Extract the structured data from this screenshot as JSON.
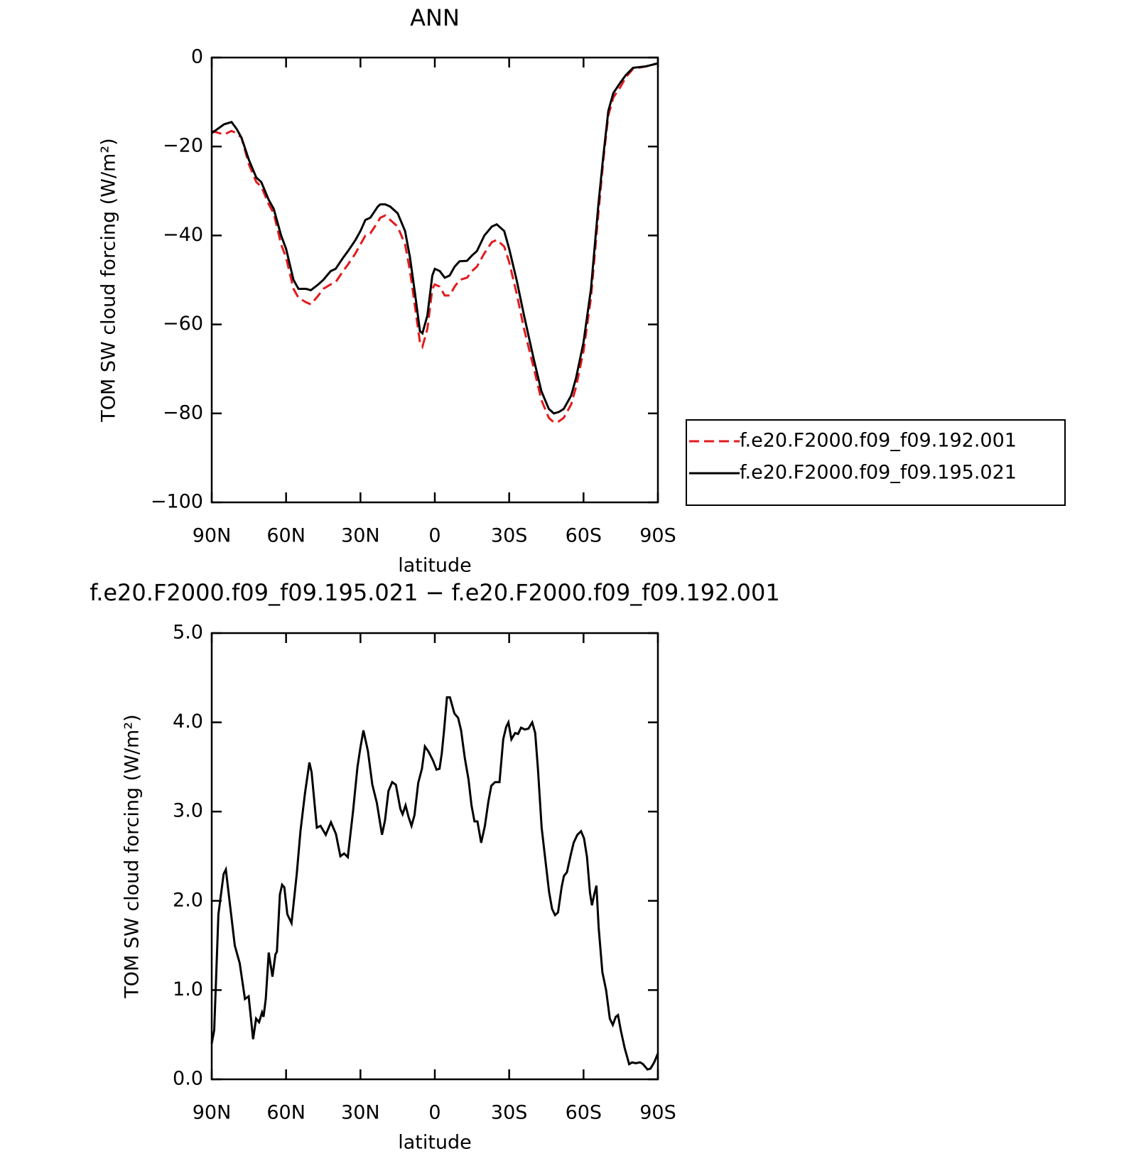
{
  "chart_data": [
    {
      "type": "line",
      "title": "ANN",
      "xlabel": "latitude",
      "ylabel": "TOM SW cloud forcing (W/m²)",
      "x": [
        90,
        85,
        82,
        80,
        78,
        75,
        72,
        70,
        67,
        65,
        62,
        60,
        57,
        55,
        52,
        50,
        47,
        45,
        42,
        40,
        37,
        35,
        32,
        30,
        28,
        26,
        23,
        22,
        20,
        18,
        15,
        12,
        10,
        8,
        6,
        5,
        3,
        1,
        0,
        -2,
        -4,
        -6,
        -8,
        -10,
        -13,
        -15,
        -17,
        -20,
        -23,
        -25,
        -28,
        -30,
        -33,
        -36,
        -40,
        -43,
        -46,
        -48,
        -50,
        -52,
        -55,
        -57,
        -60,
        -63,
        -66,
        -68,
        -70,
        -72,
        -75,
        -77,
        -80,
        -85,
        -90
      ],
      "series": [
        {
          "name": "f.e20.F2000.f09_f09.192.001",
          "color": "#e31a1c",
          "dash": "dashed",
          "values": [
            -16.5,
            -17.3,
            -16.5,
            -17,
            -18,
            -24,
            -28,
            -29,
            -33,
            -35,
            -42,
            -45,
            -52,
            -54,
            -55,
            -55.5,
            -53.5,
            -52,
            -51,
            -50.5,
            -48,
            -46.5,
            -44,
            -42,
            -40,
            -39.5,
            -37,
            -36,
            -35.5,
            -36.5,
            -38,
            -42,
            -48,
            -56,
            -64,
            -65,
            -61,
            -52,
            -51,
            -51.5,
            -53.5,
            -53.5,
            -51.5,
            -50,
            -49.5,
            -48,
            -47,
            -44,
            -41.5,
            -41,
            -42.5,
            -46,
            -53,
            -61,
            -70,
            -77,
            -81,
            -82,
            -81.8,
            -81,
            -78,
            -74,
            -66,
            -54,
            -35,
            -23,
            -13,
            -9,
            -6.5,
            -4.5,
            -2.5,
            -2,
            -1.3
          ]
        },
        {
          "name": "f.e20.F2000.f09_f09.195.021",
          "color": "#000000",
          "dash": "solid",
          "values": [
            -17,
            -15,
            -14.5,
            -16,
            -18,
            -23,
            -27,
            -28,
            -32,
            -34,
            -40,
            -43,
            -50,
            -52,
            -52,
            -52.3,
            -51,
            -50,
            -48,
            -47.5,
            -45,
            -43.5,
            -41,
            -39,
            -36.5,
            -36,
            -33.5,
            -33,
            -33,
            -33.5,
            -35,
            -39,
            -45,
            -53,
            -61.5,
            -62,
            -58,
            -49,
            -47.5,
            -48,
            -49.5,
            -49,
            -47,
            -45.8,
            -45.7,
            -44.5,
            -43.5,
            -40,
            -38,
            -37.5,
            -39,
            -43,
            -50,
            -58,
            -68,
            -75,
            -79,
            -80,
            -79.7,
            -79,
            -76,
            -72,
            -64,
            -52,
            -33,
            -22,
            -12,
            -8,
            -5.5,
            -4,
            -2.3,
            -2,
            -1.3
          ]
        }
      ],
      "xlim": [
        90,
        -90
      ],
      "xticks": [
        {
          "value": 90,
          "label": "90N"
        },
        {
          "value": 60,
          "label": "60N"
        },
        {
          "value": 30,
          "label": "30N"
        },
        0,
        {
          "value": -30,
          "label": "30S"
        },
        {
          "value": -60,
          "label": "60S"
        },
        {
          "value": -90,
          "label": "90S"
        }
      ],
      "ylim": [
        -100,
        0
      ],
      "yticks": [
        {
          "value": 0,
          "label": "0"
        },
        {
          "value": -20,
          "label": "−20"
        },
        {
          "value": -40,
          "label": "−40"
        },
        {
          "value": -60,
          "label": "−60"
        },
        {
          "value": -80,
          "label": "−80"
        },
        {
          "value": -100,
          "label": "−100"
        }
      ],
      "legend": "right"
    },
    {
      "type": "line",
      "title": "f.e20.F2000.f09_f09.195.021 − f.e20.F2000.f09_f09.192.001",
      "xlabel": "latitude",
      "ylabel": "TOM SW cloud forcing (W/m²)",
      "x": [
        90,
        89,
        87.3,
        85.2,
        84.3,
        80.7,
        78.7,
        76.6,
        75.1,
        73.3,
        72.1,
        70.9,
        69.7,
        69.1,
        68.2,
        67,
        65.5,
        64.3,
        63.7,
        62.5,
        61.6,
        60.7,
        59.5,
        57.8,
        55.7,
        54.2,
        52.4,
        50.6,
        49.7,
        47.6,
        46.1,
        44,
        41.9,
        39.9,
        38.1,
        36.6,
        35.1,
        33,
        31.2,
        30,
        28.8,
        27,
        25.2,
        23.4,
        21.3,
        20.1,
        18.7,
        17.2,
        15.7,
        13.9,
        13,
        11.8,
        10.6,
        9.4,
        8.2,
        6.7,
        5.2,
        4,
        2.5,
        0.7,
        -0.7,
        -1.9,
        -2.8,
        -3.7,
        -4.9,
        -6.1,
        -7.9,
        -9.4,
        -10.6,
        -12.1,
        -13.6,
        -14.8,
        -16,
        -17.2,
        -18.7,
        -20.2,
        -21.6,
        -22.8,
        -24.3,
        -26.1,
        -27.6,
        -28.8,
        -29.7,
        -30.9,
        -32.4,
        -33.6,
        -34.8,
        -36.3,
        -37.8,
        -39.3,
        -40.5,
        -41.6,
        -43.1,
        -44.3,
        -46.1,
        -47.3,
        -48.5,
        -49.7,
        -51.2,
        -52.1,
        -53.3,
        -54.8,
        -56,
        -57.5,
        -59,
        -60.2,
        -61.4,
        -62.6,
        -63.4,
        -64.3,
        -65.2,
        -66.1,
        -67.6,
        -69.1,
        -70.6,
        -71.8,
        -73,
        -73.9,
        -75.1,
        -76.6,
        -78.4,
        -79.6,
        -81,
        -82.8,
        -84,
        -85.8,
        -87,
        -88.5,
        -90
      ],
      "series": [
        {
          "color": "#000000",
          "dash": "solid",
          "values": [
            0.4,
            0.55,
            1.85,
            2.3,
            2.35,
            1.5,
            1.3,
            0.9,
            0.93,
            0.45,
            0.68,
            0.64,
            0.75,
            0.7,
            0.9,
            1.42,
            1.15,
            1.4,
            1.43,
            2.07,
            2.18,
            2.15,
            1.85,
            1.75,
            2.3,
            2.78,
            3.2,
            3.55,
            3.44,
            2.82,
            2.84,
            2.74,
            2.88,
            2.75,
            2.5,
            2.53,
            2.49,
            3,
            3.5,
            3.72,
            3.91,
            3.68,
            3.3,
            3.1,
            2.74,
            2.9,
            3.23,
            3.33,
            3.3,
            3.03,
            2.97,
            3.07,
            2.94,
            2.84,
            2.96,
            3.32,
            3.48,
            3.73,
            3.67,
            3.57,
            3.47,
            3.48,
            3.65,
            3.9,
            4.28,
            4.28,
            4.1,
            4.05,
            3.91,
            3.6,
            3.36,
            3.07,
            2.89,
            2.89,
            2.65,
            2.84,
            3.11,
            3.29,
            3.33,
            3.33,
            3.81,
            3.95,
            4,
            3.81,
            3.88,
            3.87,
            3.94,
            3.92,
            3.93,
            4,
            3.88,
            3.48,
            2.82,
            2.53,
            2.1,
            1.91,
            1.84,
            1.87,
            2.16,
            2.28,
            2.32,
            2.51,
            2.65,
            2.74,
            2.78,
            2.7,
            2.49,
            2.09,
            1.95,
            2.07,
            2.17,
            1.7,
            1.2,
            1,
            0.68,
            0.61,
            0.7,
            0.72,
            0.54,
            0.35,
            0.17,
            0.19,
            0.18,
            0.19,
            0.17,
            0.11,
            0.12,
            0.19,
            0.29
          ]
        }
      ],
      "xlim": [
        90,
        -90
      ],
      "xticks": [
        {
          "value": 90,
          "label": "90N"
        },
        {
          "value": 60,
          "label": "60N"
        },
        {
          "value": 30,
          "label": "30N"
        },
        0,
        {
          "value": -30,
          "label": "30S"
        },
        {
          "value": -60,
          "label": "60S"
        },
        {
          "value": -90,
          "label": "90S"
        }
      ],
      "ylim": [
        0,
        5
      ],
      "yticks": [
        {
          "value": 0,
          "label": "0.0"
        },
        {
          "value": 1,
          "label": "1.0"
        },
        {
          "value": 2,
          "label": "2.0"
        },
        {
          "value": 3,
          "label": "3.0"
        },
        {
          "value": 4,
          "label": "4.0"
        },
        {
          "value": 5,
          "label": "5.0"
        }
      ]
    }
  ]
}
